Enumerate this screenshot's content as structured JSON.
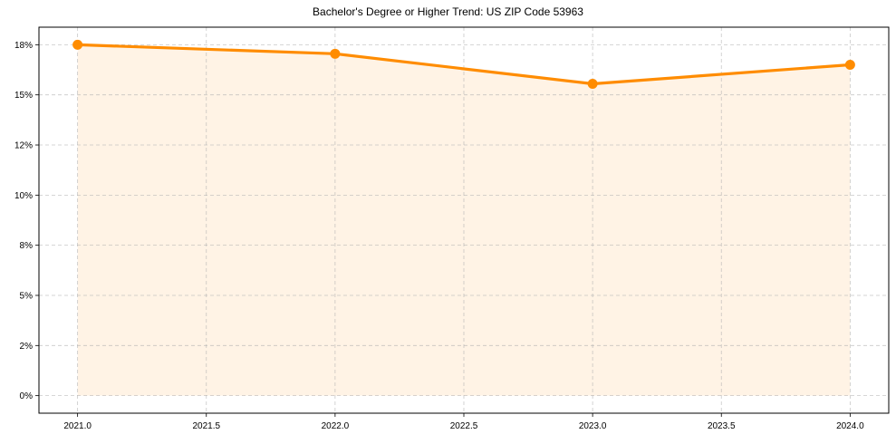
{
  "chart_data": {
    "type": "line",
    "title": "Bachelor's Degree or Higher Trend: US ZIP Code 53963",
    "xlabel": "",
    "ylabel": "",
    "x": [
      2021,
      2022,
      2023,
      2024
    ],
    "series": [
      {
        "name": "Bachelor's Degree or Higher (%)",
        "values": [
          17.5,
          17.05,
          15.55,
          16.5
        ],
        "color": "#ff8c00",
        "fill": "area"
      }
    ],
    "xticks": [
      "2021.0",
      "2021.5",
      "2022.0",
      "2022.5",
      "2023.0",
      "2023.5",
      "2024.0"
    ],
    "xtick_values": [
      2021.0,
      2021.5,
      2022.0,
      2022.5,
      2023.0,
      2023.5,
      2024.0
    ],
    "yticks": [
      "0%",
      "2%",
      "5%",
      "8%",
      "10%",
      "12%",
      "15%",
      "18%"
    ],
    "ytick_values": [
      0,
      2.5,
      5,
      7.5,
      10,
      12.5,
      15,
      17.5
    ],
    "xlim": [
      2020.85,
      2024.15
    ],
    "ylim": [
      -0.875,
      18.375
    ],
    "grid": true,
    "legend": null
  }
}
